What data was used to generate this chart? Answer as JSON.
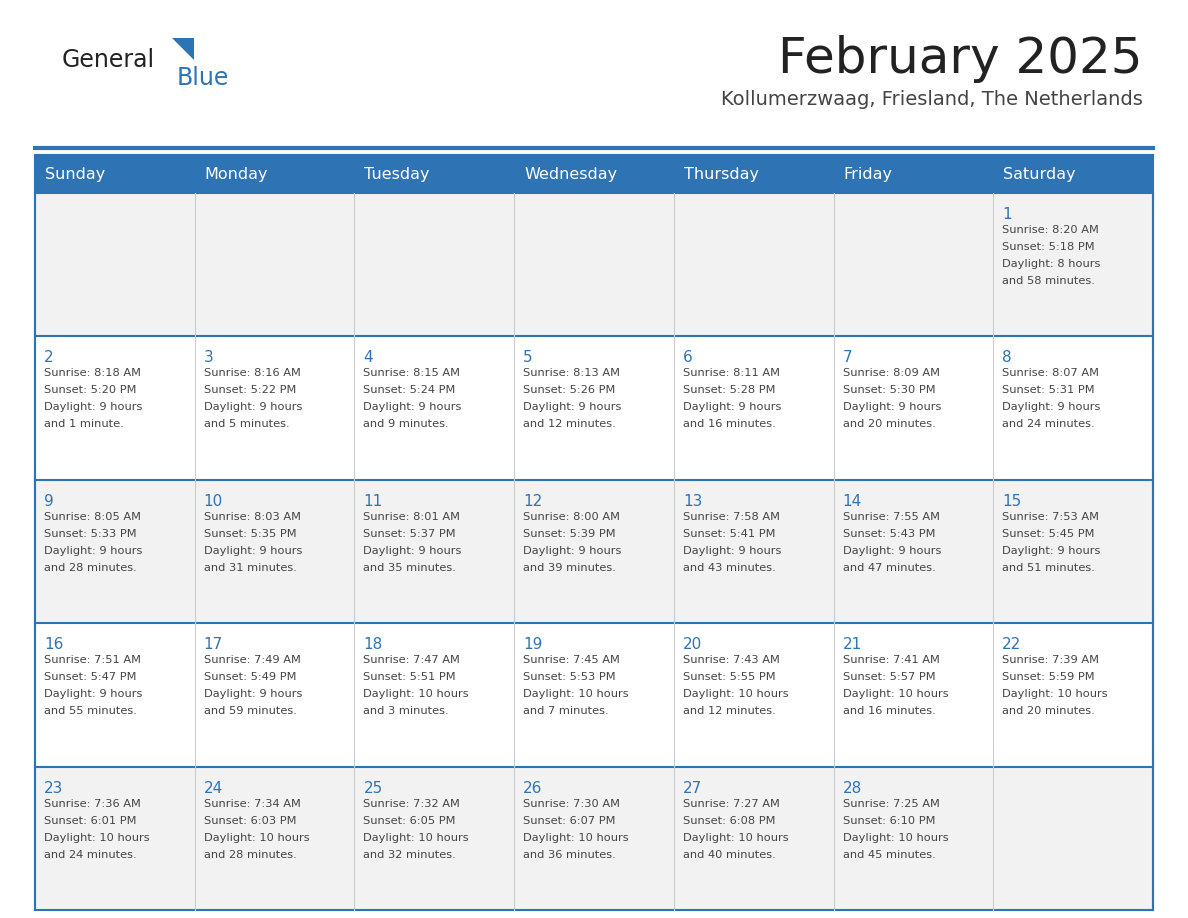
{
  "title": "February 2025",
  "subtitle": "Kollumerzwaag, Friesland, The Netherlands",
  "header_bg": "#2E74B5",
  "header_text_color": "#FFFFFF",
  "row_bg_light": "#F2F2F2",
  "row_bg_white": "#FFFFFF",
  "day_names": [
    "Sunday",
    "Monday",
    "Tuesday",
    "Wednesday",
    "Thursday",
    "Friday",
    "Saturday"
  ],
  "days": [
    {
      "day": 1,
      "col": 6,
      "row": 0,
      "sunrise": "8:20 AM",
      "sunset": "5:18 PM",
      "daylight": "8 hours and 58 minutes."
    },
    {
      "day": 2,
      "col": 0,
      "row": 1,
      "sunrise": "8:18 AM",
      "sunset": "5:20 PM",
      "daylight": "9 hours and 1 minute."
    },
    {
      "day": 3,
      "col": 1,
      "row": 1,
      "sunrise": "8:16 AM",
      "sunset": "5:22 PM",
      "daylight": "9 hours and 5 minutes."
    },
    {
      "day": 4,
      "col": 2,
      "row": 1,
      "sunrise": "8:15 AM",
      "sunset": "5:24 PM",
      "daylight": "9 hours and 9 minutes."
    },
    {
      "day": 5,
      "col": 3,
      "row": 1,
      "sunrise": "8:13 AM",
      "sunset": "5:26 PM",
      "daylight": "9 hours and 12 minutes."
    },
    {
      "day": 6,
      "col": 4,
      "row": 1,
      "sunrise": "8:11 AM",
      "sunset": "5:28 PM",
      "daylight": "9 hours and 16 minutes."
    },
    {
      "day": 7,
      "col": 5,
      "row": 1,
      "sunrise": "8:09 AM",
      "sunset": "5:30 PM",
      "daylight": "9 hours and 20 minutes."
    },
    {
      "day": 8,
      "col": 6,
      "row": 1,
      "sunrise": "8:07 AM",
      "sunset": "5:31 PM",
      "daylight": "9 hours and 24 minutes."
    },
    {
      "day": 9,
      "col": 0,
      "row": 2,
      "sunrise": "8:05 AM",
      "sunset": "5:33 PM",
      "daylight": "9 hours and 28 minutes."
    },
    {
      "day": 10,
      "col": 1,
      "row": 2,
      "sunrise": "8:03 AM",
      "sunset": "5:35 PM",
      "daylight": "9 hours and 31 minutes."
    },
    {
      "day": 11,
      "col": 2,
      "row": 2,
      "sunrise": "8:01 AM",
      "sunset": "5:37 PM",
      "daylight": "9 hours and 35 minutes."
    },
    {
      "day": 12,
      "col": 3,
      "row": 2,
      "sunrise": "8:00 AM",
      "sunset": "5:39 PM",
      "daylight": "9 hours and 39 minutes."
    },
    {
      "day": 13,
      "col": 4,
      "row": 2,
      "sunrise": "7:58 AM",
      "sunset": "5:41 PM",
      "daylight": "9 hours and 43 minutes."
    },
    {
      "day": 14,
      "col": 5,
      "row": 2,
      "sunrise": "7:55 AM",
      "sunset": "5:43 PM",
      "daylight": "9 hours and 47 minutes."
    },
    {
      "day": 15,
      "col": 6,
      "row": 2,
      "sunrise": "7:53 AM",
      "sunset": "5:45 PM",
      "daylight": "9 hours and 51 minutes."
    },
    {
      "day": 16,
      "col": 0,
      "row": 3,
      "sunrise": "7:51 AM",
      "sunset": "5:47 PM",
      "daylight": "9 hours and 55 minutes."
    },
    {
      "day": 17,
      "col": 1,
      "row": 3,
      "sunrise": "7:49 AM",
      "sunset": "5:49 PM",
      "daylight": "9 hours and 59 minutes."
    },
    {
      "day": 18,
      "col": 2,
      "row": 3,
      "sunrise": "7:47 AM",
      "sunset": "5:51 PM",
      "daylight": "10 hours and 3 minutes."
    },
    {
      "day": 19,
      "col": 3,
      "row": 3,
      "sunrise": "7:45 AM",
      "sunset": "5:53 PM",
      "daylight": "10 hours and 7 minutes."
    },
    {
      "day": 20,
      "col": 4,
      "row": 3,
      "sunrise": "7:43 AM",
      "sunset": "5:55 PM",
      "daylight": "10 hours and 12 minutes."
    },
    {
      "day": 21,
      "col": 5,
      "row": 3,
      "sunrise": "7:41 AM",
      "sunset": "5:57 PM",
      "daylight": "10 hours and 16 minutes."
    },
    {
      "day": 22,
      "col": 6,
      "row": 3,
      "sunrise": "7:39 AM",
      "sunset": "5:59 PM",
      "daylight": "10 hours and 20 minutes."
    },
    {
      "day": 23,
      "col": 0,
      "row": 4,
      "sunrise": "7:36 AM",
      "sunset": "6:01 PM",
      "daylight": "10 hours and 24 minutes."
    },
    {
      "day": 24,
      "col": 1,
      "row": 4,
      "sunrise": "7:34 AM",
      "sunset": "6:03 PM",
      "daylight": "10 hours and 28 minutes."
    },
    {
      "day": 25,
      "col": 2,
      "row": 4,
      "sunrise": "7:32 AM",
      "sunset": "6:05 PM",
      "daylight": "10 hours and 32 minutes."
    },
    {
      "day": 26,
      "col": 3,
      "row": 4,
      "sunrise": "7:30 AM",
      "sunset": "6:07 PM",
      "daylight": "10 hours and 36 minutes."
    },
    {
      "day": 27,
      "col": 4,
      "row": 4,
      "sunrise": "7:27 AM",
      "sunset": "6:08 PM",
      "daylight": "10 hours and 40 minutes."
    },
    {
      "day": 28,
      "col": 5,
      "row": 4,
      "sunrise": "7:25 AM",
      "sunset": "6:10 PM",
      "daylight": "10 hours and 45 minutes."
    }
  ],
  "num_rows": 5,
  "num_cols": 7,
  "border_color": "#2E74B5",
  "cell_text_color": "#444444",
  "day_number_color": "#2E74B5",
  "title_color": "#222222",
  "subtitle_color": "#444444",
  "logo_general_color": "#222222",
  "logo_blue_color": "#2E74B5",
  "logo_triangle_color": "#2E74B5"
}
